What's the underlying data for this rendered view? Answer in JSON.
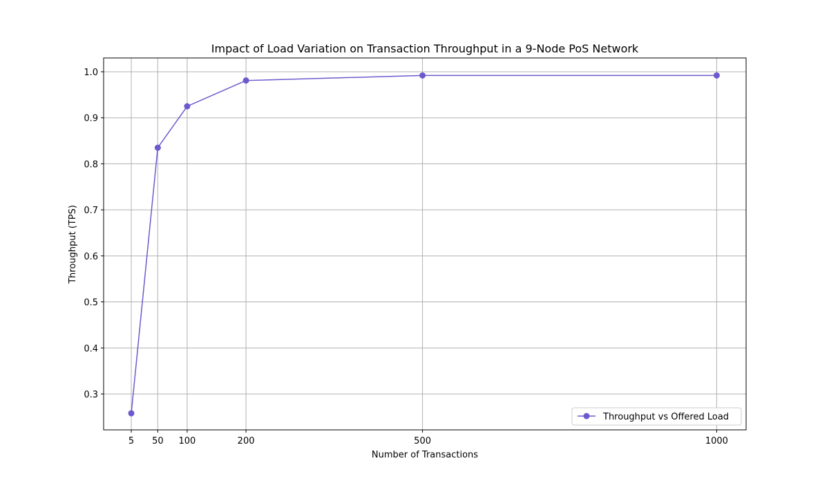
{
  "chart_data": {
    "type": "line",
    "title": "Impact of Load Variation on Transaction Throughput in a 9-Node PoS Network",
    "xlabel": "Number of Transactions",
    "ylabel": "Throughput (TPS)",
    "x": [
      5,
      50,
      100,
      200,
      500,
      1000
    ],
    "x_ticks": [
      5,
      50,
      100,
      200,
      500,
      1000
    ],
    "y_ticks": [
      0.3,
      0.4,
      0.5,
      0.6,
      0.7,
      0.8,
      0.9,
      1.0
    ],
    "xlim": [
      -42,
      1050
    ],
    "ylim": [
      0.222,
      1.03
    ],
    "grid": true,
    "legend_position": "lower-right",
    "series": [
      {
        "name": "Throughput vs Offered Load",
        "color": "#6a5acd",
        "marker": "circle",
        "values": [
          0.258,
          0.835,
          0.925,
          0.981,
          0.992,
          0.992
        ]
      }
    ]
  }
}
